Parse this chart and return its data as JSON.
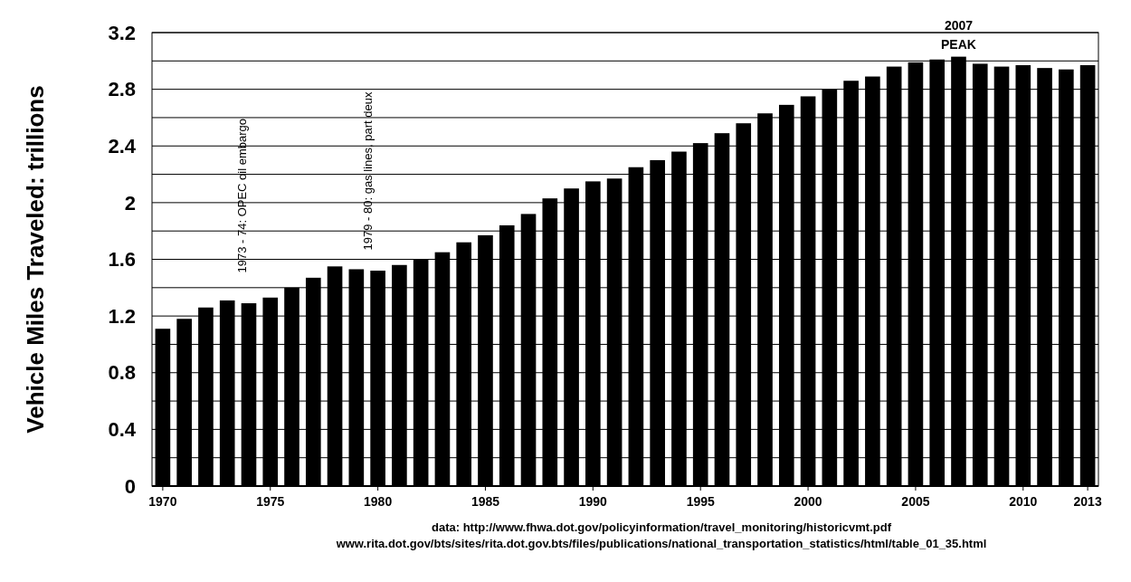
{
  "chart_data": {
    "type": "bar",
    "ylabel": "Vehicle Miles Traveled: trillions",
    "x": [
      1970,
      1971,
      1972,
      1973,
      1974,
      1975,
      1976,
      1977,
      1978,
      1979,
      1980,
      1981,
      1982,
      1983,
      1984,
      1985,
      1986,
      1987,
      1988,
      1989,
      1990,
      1991,
      1992,
      1993,
      1994,
      1995,
      1996,
      1997,
      1998,
      1999,
      2000,
      2001,
      2002,
      2003,
      2004,
      2005,
      2006,
      2007,
      2008,
      2009,
      2010,
      2011,
      2012,
      2013
    ],
    "values": [
      1.11,
      1.18,
      1.26,
      1.31,
      1.29,
      1.33,
      1.4,
      1.47,
      1.55,
      1.53,
      1.52,
      1.56,
      1.6,
      1.65,
      1.72,
      1.77,
      1.84,
      1.92,
      2.03,
      2.1,
      2.15,
      2.17,
      2.25,
      2.3,
      2.36,
      2.42,
      2.49,
      2.56,
      2.63,
      2.69,
      2.75,
      2.8,
      2.86,
      2.89,
      2.96,
      2.99,
      3.01,
      3.03,
      2.98,
      2.96,
      2.97,
      2.95,
      2.94,
      2.97
    ],
    "color": "#000000",
    "xlim": [
      1969.5,
      2013.5
    ],
    "xticks": [
      1970,
      1975,
      1980,
      1985,
      1990,
      1995,
      2000,
      2005,
      2010,
      2013
    ],
    "ylim": [
      0,
      3.2
    ],
    "yticks": [
      0,
      {
        "value": 0.2,
        "label": null
      },
      0.4,
      {
        "value": 0.6,
        "label": null
      },
      0.8,
      {
        "value": 1.0,
        "label": null
      },
      1.2,
      {
        "value": 1.4,
        "label": null
      },
      1.6,
      {
        "value": 1.8,
        "label": null
      },
      2,
      {
        "value": 2.2,
        "label": null
      },
      2.4,
      {
        "value": 2.6,
        "label": null
      },
      2.8,
      {
        "value": 3.0,
        "label": null
      },
      3.2
    ],
    "grid": "y",
    "annotations": [
      "1973 - 74:  OPEC oil embargo",
      "1979 - 80: gas lines, part deux",
      {
        "text": "2007\nPEAK",
        "x": 2007,
        "y": 3.03
      },
      "data:  http://www.fhwa.dot.gov/policyinformation/travel_monitoring/historicvmt.pdf",
      "www.rita.dot.gov/bts/sites/rita.dot.gov.bts/files/publications/national_transportation_statistics/html/table_01_35.html"
    ]
  }
}
